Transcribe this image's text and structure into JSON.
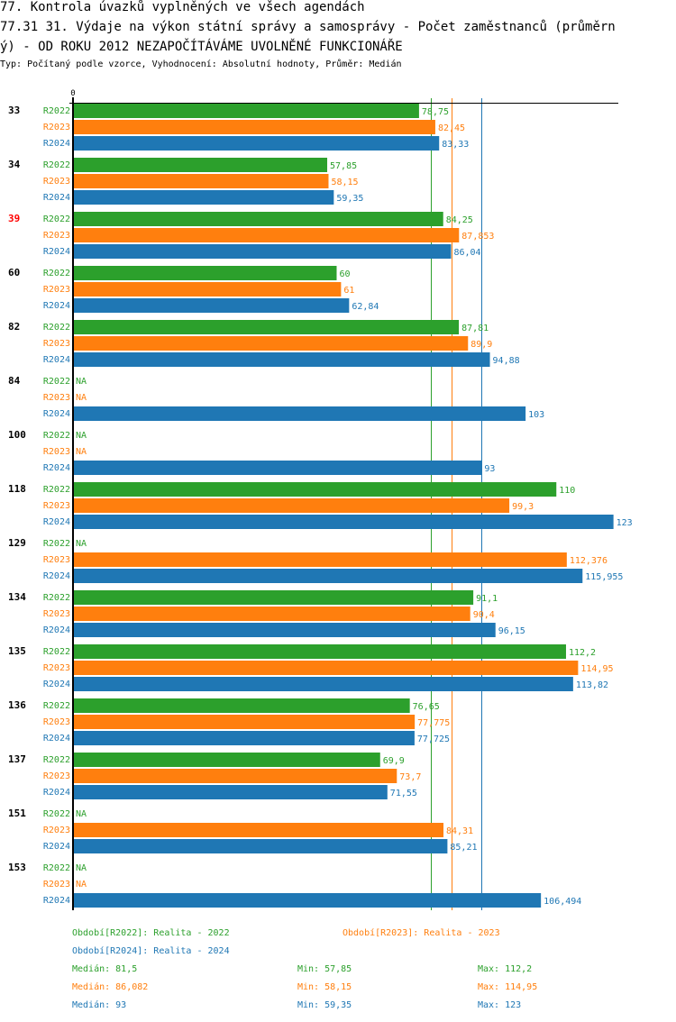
{
  "header": {
    "title_line1": "77. Kontrola úvazků vyplněných ve všech agendách",
    "title_line2": "77.31 31. Výdaje na výkon státní správy a samosprávy - Počet zaměstnanců (průměrn",
    "title_line3": "ý) - OD ROKU 2012 NEZAPOČÍTÁVÁME UVOLNĚNÉ FUNKCIONÁŘE",
    "subtitle": "Typ: Počítaný podle vzorce, Vyhodnocení: Absolutní hodnoty, Průměr: Medián"
  },
  "colors": {
    "R2022": "#2ca02c",
    "R2023": "#ff7f0e",
    "R2024": "#1f77b4",
    "highlight": "#ff0000",
    "axis": "#000000"
  },
  "chart_data": {
    "type": "bar",
    "orientation": "horizontal",
    "title": "77.31 31. Výdaje na výkon státní správy a samosprávy - Počet zaměstnanců (průměrný) - OD ROKU 2012 NEZAPOČÍTÁVÁME UVOLNĚNÉ FUNKCIONÁŘE",
    "xlabel": "",
    "ylabel": "",
    "x_tick_labels": [
      "0"
    ],
    "xlim": [
      0,
      124
    ],
    "grid": false,
    "na_label": "NA",
    "categories": [
      "33",
      "34",
      "39",
      "60",
      "82",
      "84",
      "100",
      "118",
      "129",
      "134",
      "135",
      "136",
      "137",
      "151",
      "153"
    ],
    "highlighted_categories": [
      "39"
    ],
    "series": [
      {
        "name": "R2022",
        "values": [
          78.75,
          57.85,
          84.25,
          60,
          87.81,
          null,
          null,
          110,
          null,
          91.1,
          112.2,
          76.65,
          69.9,
          null,
          null
        ],
        "labels": [
          "78,75",
          "57,85",
          "84,25",
          "60",
          "87,81",
          "NA",
          "NA",
          "110",
          "NA",
          "91,1",
          "112,2",
          "76,65",
          "69,9",
          "NA",
          "NA"
        ]
      },
      {
        "name": "R2023",
        "values": [
          82.45,
          58.15,
          87.853,
          61,
          89.9,
          null,
          null,
          99.3,
          112.376,
          90.4,
          114.95,
          77.775,
          73.7,
          84.31,
          null
        ],
        "labels": [
          "82,45",
          "58,15",
          "87,853",
          "61",
          "89,9",
          "NA",
          "NA",
          "99,3",
          "112,376",
          "90,4",
          "114,95",
          "77,775",
          "73,7",
          "84,31",
          "NA"
        ]
      },
      {
        "name": "R2024",
        "values": [
          83.33,
          59.35,
          86.04,
          62.84,
          94.88,
          103,
          93,
          123,
          115.955,
          96.15,
          113.82,
          77.725,
          71.55,
          85.21,
          106.494
        ],
        "labels": [
          "83,33",
          "59,35",
          "86,04",
          "62,84",
          "94,88",
          "103",
          "93",
          "123",
          "115,955",
          "96,15",
          "113,82",
          "77,725",
          "71,55",
          "85,21",
          "106,494"
        ]
      }
    ],
    "medians": {
      "R2022": 81.5,
      "R2023": 86.082,
      "R2024": 93
    }
  },
  "legend": {
    "periods": [
      {
        "key": "R2022",
        "text": "Období[R2022]: Realita - 2022"
      },
      {
        "key": "R2023",
        "text": "Období[R2023]: Realita - 2023"
      },
      {
        "key": "R2024",
        "text": "Období[R2024]: Realita - 2024"
      }
    ],
    "stats": [
      {
        "key": "R2022",
        "median": "Medián: 81,5",
        "min": "Min: 57,85",
        "max": "Max: 112,2"
      },
      {
        "key": "R2023",
        "median": "Medián: 86,082",
        "min": "Min: 58,15",
        "max": "Max: 114,95"
      },
      {
        "key": "R2024",
        "median": "Medián: 93",
        "min": "Min: 59,35",
        "max": "Max: 123"
      }
    ]
  }
}
